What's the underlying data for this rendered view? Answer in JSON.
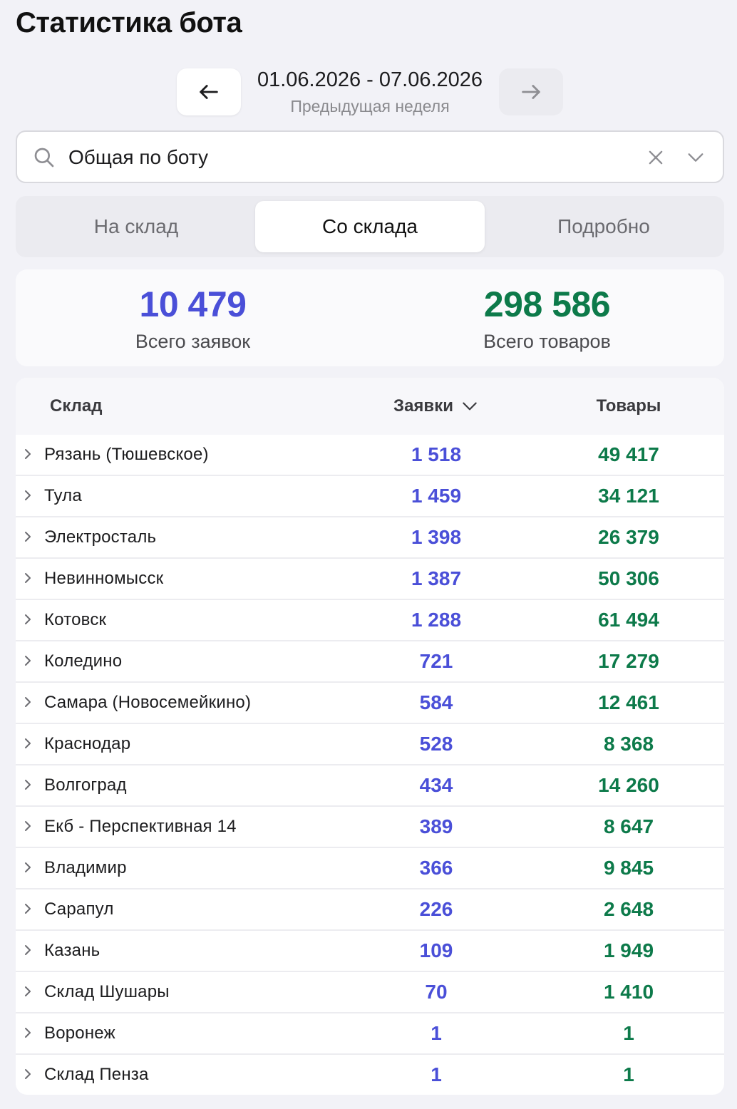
{
  "page_title": "Статистика бота",
  "date_nav": {
    "range": "01.06.2026 - 07.06.2026",
    "subtitle": "Предыдущая неделя"
  },
  "search": {
    "value": "Общая по боту"
  },
  "tabs": [
    {
      "label": "На склад",
      "active": false
    },
    {
      "label": "Со склада",
      "active": true
    },
    {
      "label": "Подробно",
      "active": false
    }
  ],
  "totals": {
    "orders_value": "10 479",
    "orders_label": "Всего заявок",
    "goods_value": "298 586",
    "goods_label": "Всего товаров"
  },
  "table": {
    "headers": {
      "warehouse": "Склад",
      "orders": "Заявки",
      "goods": "Товары"
    },
    "rows": [
      {
        "name": "Рязань (Тюшевское)",
        "orders": "1 518",
        "goods": "49 417"
      },
      {
        "name": "Тула",
        "orders": "1 459",
        "goods": "34 121"
      },
      {
        "name": "Электросталь",
        "orders": "1 398",
        "goods": "26 379"
      },
      {
        "name": "Невинномысск",
        "orders": "1 387",
        "goods": "50 306"
      },
      {
        "name": "Котовск",
        "orders": "1 288",
        "goods": "61 494"
      },
      {
        "name": "Коледино",
        "orders": "721",
        "goods": "17 279"
      },
      {
        "name": "Самара (Новосемейкино)",
        "orders": "584",
        "goods": "12 461"
      },
      {
        "name": "Краснодар",
        "orders": "528",
        "goods": "8 368"
      },
      {
        "name": "Волгоград",
        "orders": "434",
        "goods": "14 260"
      },
      {
        "name": "Екб - Перспективная 14",
        "orders": "389",
        "goods": "8 647"
      },
      {
        "name": "Владимир",
        "orders": "366",
        "goods": "9 845"
      },
      {
        "name": "Сарапул",
        "orders": "226",
        "goods": "2 648"
      },
      {
        "name": "Казань",
        "orders": "109",
        "goods": "1 949"
      },
      {
        "name": "Склад Шушары",
        "orders": "70",
        "goods": "1 410"
      },
      {
        "name": "Воронеж",
        "orders": "1",
        "goods": "1"
      },
      {
        "name": "Склад Пенза",
        "orders": "1",
        "goods": "1"
      }
    ]
  },
  "colors": {
    "orders_accent": "#4a4fd8",
    "goods_accent": "#0d7a4a"
  }
}
